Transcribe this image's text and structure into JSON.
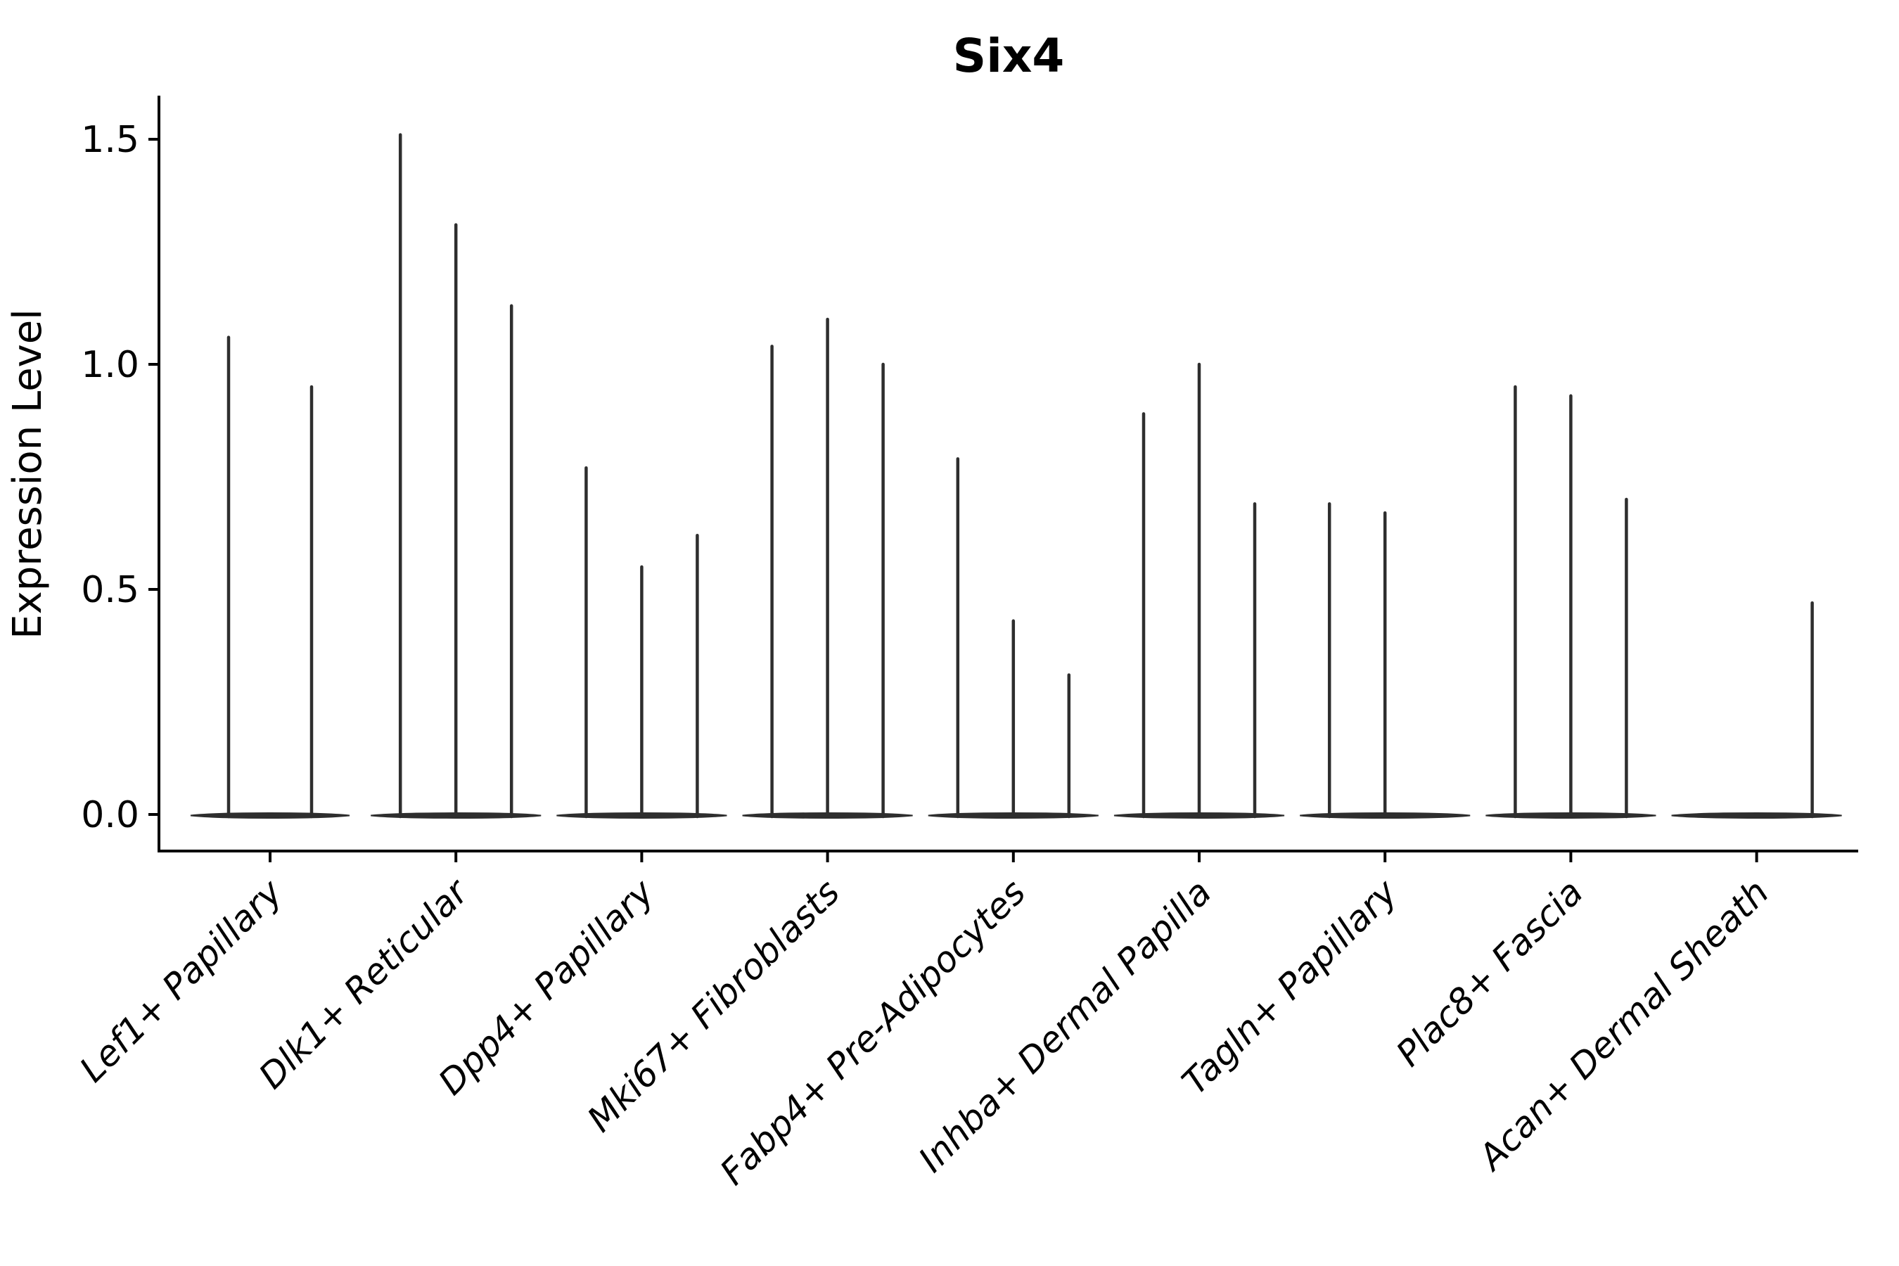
{
  "title": "Six4",
  "ylabel": "Expression Level",
  "chart_data": {
    "type": "violin",
    "title": "Six4",
    "ylabel": "Expression Level",
    "xlabel": "",
    "ylim": [
      -0.07,
      1.58
    ],
    "yticks": [
      0.0,
      0.5,
      1.0,
      1.5
    ],
    "ytick_labels": [
      "0.0",
      "0.5",
      "1.0",
      "1.5"
    ],
    "grid": false,
    "legend": "none",
    "description": "Sparse single-cell expression violin plot: each cluster shows 2-3 needle-thin violins (wide flat base at 0 with a thin spike up to the max expression value). A max value of 0 means a flat base with no spike.",
    "categories": [
      "Lef1+ Papillary",
      "Dlk1+ Reticular",
      "Dpp4+ Papillary",
      "Mki67+ Fibroblasts",
      "Fabp4+ Pre-Adipocytes",
      "Inhba+ Dermal Papilla",
      "Tagln+ Papillary",
      "Plac8+ Fascia",
      "Acan+ Dermal Sheath"
    ],
    "violins": [
      {
        "category": "Lef1+ Papillary",
        "max_values": [
          1.06,
          0.95
        ]
      },
      {
        "category": "Dlk1+ Reticular",
        "max_values": [
          1.51,
          1.31,
          1.13
        ]
      },
      {
        "category": "Dpp4+ Papillary",
        "max_values": [
          0.77,
          0.55,
          0.62
        ]
      },
      {
        "category": "Mki67+ Fibroblasts",
        "max_values": [
          1.04,
          1.1,
          1.0
        ]
      },
      {
        "category": "Fabp4+ Pre-Adipocytes",
        "max_values": [
          0.79,
          0.43,
          0.31
        ]
      },
      {
        "category": "Inhba+ Dermal Papilla",
        "max_values": [
          0.89,
          1.0,
          0.69
        ]
      },
      {
        "category": "Tagln+ Papillary",
        "max_values": [
          0.69,
          0.67,
          0
        ]
      },
      {
        "category": "Plac8+ Fascia",
        "max_values": [
          0.95,
          0.93,
          0.7
        ]
      },
      {
        "category": "Acan+ Dermal Sheath",
        "max_values": [
          0,
          0,
          0.47
        ]
      }
    ],
    "colors": {
      "violin": "#2e2e2e",
      "axis": "#000000",
      "text": "#000000",
      "background": "#ffffff"
    }
  }
}
